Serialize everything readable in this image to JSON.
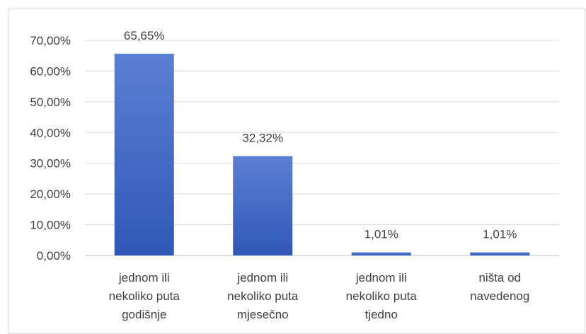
{
  "chart_data": {
    "type": "bar",
    "categories": [
      [
        "jednom ili",
        "nekoliko puta",
        "godišnje"
      ],
      [
        "jednom ili",
        "nekoliko puta",
        "mjesečno"
      ],
      [
        "jednom ili",
        "nekoliko puta",
        "tjedno"
      ],
      [
        "ništa od",
        "navedenog"
      ]
    ],
    "values": [
      65.65,
      32.32,
      1.01,
      1.01
    ],
    "value_labels": [
      "65,65%",
      "32,32%",
      "1,01%",
      "1,01%"
    ],
    "y_ticks": [
      0,
      10,
      20,
      30,
      40,
      50,
      60,
      70
    ],
    "y_tick_labels": [
      "0,00%",
      "10,00%",
      "20,00%",
      "30,00%",
      "40,00%",
      "50,00%",
      "60,00%",
      "70,00%"
    ],
    "ylim": [
      0,
      70
    ],
    "grid": true,
    "legend": "none",
    "colors": {
      "bar_top": "#5b7fd4",
      "bar_bottom": "#2f58b6",
      "grid": "#d9d9d9",
      "text": "#404040"
    }
  }
}
